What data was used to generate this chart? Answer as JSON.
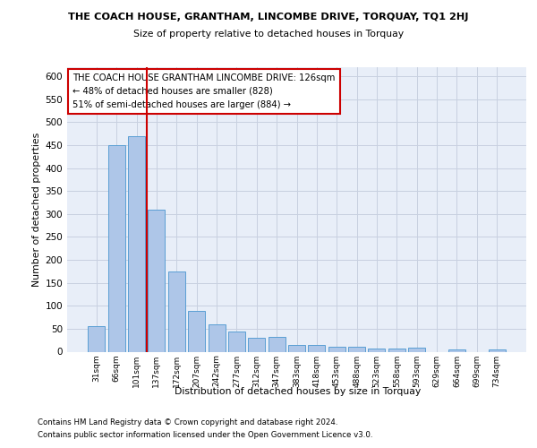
{
  "title": "THE COACH HOUSE, GRANTHAM, LINCOMBE DRIVE, TORQUAY, TQ1 2HJ",
  "subtitle": "Size of property relative to detached houses in Torquay",
  "xlabel": "Distribution of detached houses by size in Torquay",
  "ylabel": "Number of detached properties",
  "categories": [
    "31sqm",
    "66sqm",
    "101sqm",
    "137sqm",
    "172sqm",
    "207sqm",
    "242sqm",
    "277sqm",
    "312sqm",
    "347sqm",
    "383sqm",
    "418sqm",
    "453sqm",
    "488sqm",
    "523sqm",
    "558sqm",
    "593sqm",
    "629sqm",
    "664sqm",
    "699sqm",
    "734sqm"
  ],
  "values": [
    55,
    450,
    470,
    310,
    175,
    88,
    60,
    43,
    31,
    33,
    15,
    15,
    10,
    10,
    6,
    6,
    9,
    0,
    5,
    0,
    5
  ],
  "bar_color": "#aec6e8",
  "bar_edge_color": "#5a9fd4",
  "vline_color": "#cc0000",
  "vline_pos": 2.5,
  "annotation_text": "THE COACH HOUSE GRANTHAM LINCOMBE DRIVE: 126sqm\n← 48% of detached houses are smaller (828)\n51% of semi-detached houses are larger (884) →",
  "annotation_box_color": "#ffffff",
  "annotation_box_edge": "#cc0000",
  "ylim": [
    0,
    620
  ],
  "yticks": [
    0,
    50,
    100,
    150,
    200,
    250,
    300,
    350,
    400,
    450,
    500,
    550,
    600
  ],
  "footer1": "Contains HM Land Registry data © Crown copyright and database right 2024.",
  "footer2": "Contains public sector information licensed under the Open Government Licence v3.0.",
  "background_color": "#e8eef8",
  "grid_color": "#c8d0e0"
}
